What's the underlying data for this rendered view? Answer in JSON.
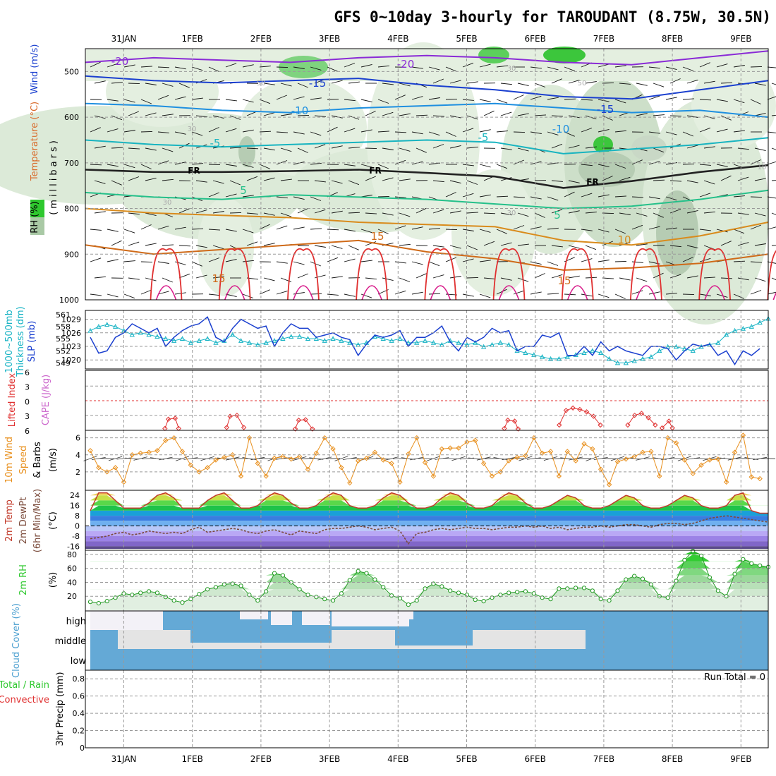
{
  "title": "GFS 0~10day 3-hourly for TAROUDANT (8.75W, 30.5N)",
  "dates": [
    "31JAN",
    "1FEB",
    "2FEB",
    "3FEB",
    "4FEB",
    "5FEB",
    "6FEB",
    "7FEB",
    "8FEB",
    "9FEB"
  ],
  "colors": {
    "grid": "#999999",
    "rh": "#2ec82e",
    "slp": "#1a3fcf",
    "thick": "#17b3c4",
    "li": "#e03030",
    "cape": "#cc66cc",
    "wind": "#e88f1c",
    "temp": "#c23a2a",
    "dew": "#7a4a3a",
    "cloud": "#64a9d6",
    "cloudLight": "#e4e4e4",
    "cloudFaint": "#f3f1f7"
  },
  "chart_data": [
    {
      "panel": "upper-air",
      "type": "heatmap",
      "ylabel": "(millibars)",
      "side_labels": [
        "Wind (m/s)",
        "Temperature (°C)",
        "RH (%)"
      ],
      "y_ticks": [
        500,
        600,
        700,
        800,
        900,
        1000
      ],
      "ylim": [
        1000,
        450
      ],
      "contour_labels": [
        "-20",
        "-20",
        "-15",
        "-15",
        "-10",
        "-10",
        "-5",
        "-5",
        "FR",
        "FR",
        "FR",
        "5",
        "5",
        "15",
        "15",
        "10",
        "15",
        "30",
        "30",
        "30",
        "50",
        "50",
        "30",
        "10"
      ],
      "isotherms": [
        {
          "name": "-20",
          "values": [
            480,
            470,
            475,
            480,
            470,
            465,
            470,
            480,
            485,
            470,
            455
          ]
        },
        {
          "name": "-15",
          "values": [
            510,
            520,
            525,
            520,
            515,
            530,
            540,
            555,
            560,
            540,
            520
          ]
        },
        {
          "name": "-10",
          "values": [
            570,
            575,
            585,
            590,
            580,
            575,
            570,
            580,
            590,
            585,
            600
          ]
        },
        {
          "name": "-5",
          "values": [
            650,
            660,
            665,
            660,
            655,
            650,
            655,
            680,
            670,
            660,
            645
          ]
        },
        {
          "name": "FR",
          "values": [
            715,
            720,
            720,
            718,
            715,
            722,
            730,
            755,
            740,
            720,
            705
          ]
        },
        {
          "name": "5",
          "values": [
            765,
            775,
            780,
            770,
            775,
            780,
            790,
            800,
            795,
            780,
            760
          ]
        },
        {
          "name": "10",
          "values": [
            800,
            810,
            815,
            820,
            830,
            835,
            840,
            870,
            880,
            860,
            830
          ]
        },
        {
          "name": "15",
          "values": [
            880,
            900,
            890,
            880,
            870,
            895,
            910,
            935,
            930,
            920,
            900
          ]
        }
      ]
    },
    {
      "panel": "pressure",
      "type": "line",
      "ylabels": [
        "1000~500mb",
        "Thickness (dm)",
        "SLP (mb)"
      ],
      "thickness_ticks": [
        549,
        552,
        555,
        558,
        561
      ],
      "slp_ticks": [
        1020,
        1023,
        1026,
        1029
      ],
      "series": [
        {
          "name": "SLP (mb)",
          "values": [
            1025,
            1021.5,
            1022,
            1025,
            1026,
            1028,
            1027,
            1026,
            1027,
            1023,
            1025,
            1026.5,
            1027.5,
            1028,
            1029.5,
            1025,
            1024,
            1027,
            1029,
            1028,
            1027,
            1027.5,
            1023,
            1026,
            1028,
            1027,
            1027,
            1025,
            1025.5,
            1026,
            1025,
            1024.5,
            1021,
            1023.5,
            1025.5,
            1025,
            1025.5,
            1026.5,
            1023,
            1025,
            1025,
            1026,
            1027.5,
            1024,
            1022,
            1025,
            1024,
            1025,
            1027,
            1026,
            1026.5,
            1022,
            1023,
            1023,
            1025.5,
            1025,
            1026,
            1021,
            1021,
            1023,
            1021,
            1024,
            1022,
            1023,
            1022,
            1021.5,
            1021,
            1023,
            1023,
            1022.5,
            1020,
            1022,
            1023.5,
            1023,
            1023.5,
            1021,
            1022,
            1019,
            1022,
            1021,
            1022.5
          ]
        },
        {
          "name": "Thickness (dm)",
          "values": [
            557,
            558,
            558.5,
            558,
            557,
            556,
            556.5,
            556,
            555.5,
            555,
            554.5,
            555,
            554,
            554.5,
            555,
            554,
            554.5,
            556,
            554.5,
            554,
            553.5,
            554,
            554.5,
            555,
            555.5,
            555.5,
            555,
            555,
            554.5,
            555,
            554.5,
            554,
            553.5,
            554,
            555.5,
            555,
            554.5,
            555,
            554,
            554,
            554.5,
            554,
            553.5,
            554.5,
            554,
            553.5,
            554,
            553,
            553.5,
            554,
            553.5,
            552,
            551.5,
            551,
            550.5,
            550,
            550,
            550.5,
            551,
            551.5,
            552,
            551.5,
            550,
            549,
            549,
            549.5,
            550,
            550.5,
            552,
            553,
            553,
            552.5,
            552,
            553,
            553.5,
            554,
            556,
            557,
            557.5,
            558,
            559,
            560
          ]
        }
      ]
    },
    {
      "panel": "stability",
      "type": "line",
      "ylabels": [
        "Lifted Index",
        "CAPE (J/kg)"
      ],
      "ticks": [
        "6",
        "3",
        "0",
        "3",
        "6"
      ],
      "series": [
        {
          "name": "Lifted Index",
          "segments": [
            [
              [
                0.6,
                5.7
              ],
              [
                0.65,
                3.8
              ],
              [
                0.75,
                3.6
              ],
              [
                0.8,
                5.7
              ]
            ],
            [
              [
                1.5,
                5.5
              ],
              [
                1.55,
                3.2
              ],
              [
                1.65,
                3.0
              ],
              [
                1.75,
                5.5
              ]
            ],
            [
              [
                2.5,
                5.8
              ],
              [
                2.55,
                4.0
              ],
              [
                2.65,
                3.9
              ],
              [
                2.75,
                5.8
              ]
            ],
            [
              [
                5.55,
                5.7
              ],
              [
                5.6,
                4.0
              ],
              [
                5.7,
                4.2
              ],
              [
                5.75,
                5.8
              ]
            ],
            [
              [
                6.35,
                5.0
              ],
              [
                6.45,
                2.0
              ],
              [
                6.55,
                1.5
              ],
              [
                6.65,
                1.8
              ],
              [
                6.75,
                2.3
              ],
              [
                6.85,
                3.2
              ],
              [
                6.95,
                5.0
              ]
            ],
            [
              [
                7.35,
                5.0
              ],
              [
                7.45,
                3.0
              ],
              [
                7.55,
                2.6
              ],
              [
                7.65,
                3.5
              ],
              [
                7.75,
                5.0
              ]
            ],
            [
              [
                7.85,
                5.6
              ],
              [
                7.95,
                4.2
              ],
              [
                8.0,
                5.6
              ]
            ]
          ]
        }
      ]
    },
    {
      "panel": "wind",
      "type": "line",
      "ylabels": [
        "10m Wind",
        "Speed",
        "& Barbs",
        "(m/s)"
      ],
      "y_ticks": [
        2,
        4,
        6
      ],
      "ylim": [
        0,
        6.8
      ],
      "series": [
        {
          "name": "Speed",
          "values": [
            4.5,
            2.5,
            2,
            2.5,
            0.8,
            4,
            4.2,
            4.3,
            4.5,
            5.7,
            6,
            4.4,
            2.8,
            2,
            2.5,
            3.4,
            3.7,
            4,
            1.5,
            6,
            3,
            1.5,
            3.6,
            3.8,
            3.5,
            3.8,
            2.3,
            4.2,
            6,
            4.7,
            2.5,
            0.7,
            3.3,
            3.6,
            4.3,
            3.4,
            3,
            0.8,
            4.1,
            6,
            3.1,
            1.5,
            4.7,
            4.8,
            4.8,
            5.5,
            5.7,
            3,
            1.5,
            2,
            3.3,
            3.7,
            3.9,
            6,
            4.2,
            4.4,
            1.5,
            4.4,
            3.3,
            5.3,
            4.7,
            2.3,
            0.5,
            3.2,
            3.5,
            3.8,
            4.3,
            4.4,
            1.5,
            6,
            5.4,
            3.4,
            1.8,
            2.8,
            3.4,
            3.5,
            0.8,
            4.3,
            6.3,
            1.4,
            1.2
          ]
        }
      ]
    },
    {
      "panel": "temperature",
      "type": "area",
      "ylabels": [
        "2m Temp",
        "2m DewPt",
        "(6hr Min/Max)",
        "(°C)"
      ],
      "y_ticks": [
        "24",
        "16",
        "8",
        "0",
        "-8",
        "-16"
      ],
      "ylim": [
        -18,
        28
      ],
      "series": [
        {
          "name": "2m Temp",
          "values": [
            12,
            26,
            26,
            20,
            14,
            14,
            14,
            18,
            24,
            26,
            22,
            14,
            14,
            14,
            20,
            24,
            26,
            20,
            14,
            14,
            16,
            22,
            26,
            24,
            18,
            14,
            14,
            16,
            22,
            26,
            24,
            16,
            14,
            14,
            16,
            22,
            26,
            24,
            18,
            14,
            14,
            16,
            22,
            26,
            24,
            18,
            14,
            14,
            16,
            22,
            26,
            24,
            18,
            14,
            14,
            16,
            20,
            24,
            22,
            16,
            14,
            14,
            16,
            20,
            24,
            22,
            16,
            14,
            14,
            16,
            20,
            24,
            22,
            16,
            14,
            14,
            16,
            24,
            26,
            12,
            10,
            10
          ]
        },
        {
          "name": "2m DewPt",
          "values": [
            -10,
            -9,
            -8,
            -6,
            -5,
            -7,
            -6,
            -4,
            -5,
            -6,
            -5,
            -6,
            -3,
            -1,
            -5,
            -4,
            -3,
            -2,
            -3,
            -5,
            -6,
            -4,
            -3,
            -5,
            -7,
            -4,
            -5,
            -6,
            -3,
            -2,
            -2,
            -1,
            0,
            -1,
            -3,
            -2,
            -1,
            -4,
            -14,
            -6,
            -5,
            -3,
            -2,
            -3,
            -2,
            -1,
            -2,
            -2,
            -3,
            -2,
            -1,
            -1,
            0,
            -1,
            0,
            -2,
            -1,
            -3,
            -2,
            -1,
            -1,
            0,
            -1,
            0,
            1,
            1,
            0,
            -1,
            1,
            2,
            2,
            1,
            2,
            4,
            6,
            7,
            8,
            7,
            6,
            5,
            4,
            3
          ]
        }
      ]
    },
    {
      "panel": "relative-humidity",
      "type": "area",
      "ylabels": [
        "2m RH",
        "(%)"
      ],
      "y_ticks": [
        20,
        40,
        60,
        80
      ],
      "ylim": [
        0,
        86
      ],
      "series": [
        {
          "name": "2m RH",
          "values": [
            12,
            10,
            13,
            18,
            24,
            22,
            25,
            27,
            25,
            19,
            14,
            11,
            16,
            23,
            30,
            33,
            37,
            38,
            35,
            22,
            14,
            27,
            53,
            50,
            40,
            30,
            22,
            19,
            16,
            14,
            24,
            43,
            56,
            53,
            44,
            33,
            21,
            17,
            8,
            14,
            31,
            38,
            34,
            28,
            25,
            22,
            15,
            13,
            18,
            22,
            25,
            26,
            27,
            24,
            18,
            16,
            31,
            31,
            32,
            32,
            28,
            16,
            14,
            28,
            44,
            49,
            45,
            37,
            20,
            18,
            42,
            72,
            85,
            78,
            47,
            28,
            20,
            52,
            73,
            67,
            64,
            62
          ]
        }
      ]
    },
    {
      "panel": "cloud-cover",
      "type": "heatmap",
      "ylabel": "Cloud Cover (%)",
      "levels": [
        "high",
        "middle",
        "low"
      ]
    },
    {
      "panel": "precipitation",
      "type": "bar",
      "ylabels": [
        "Total / Rain",
        "Convective",
        "3hr Precip (mm)"
      ],
      "y_ticks": [
        "0",
        "0.2",
        "0.4",
        "0.6",
        "0.8"
      ],
      "ylim": [
        0,
        0.9
      ],
      "run_total_label": "Run Total = 0",
      "values": []
    }
  ]
}
